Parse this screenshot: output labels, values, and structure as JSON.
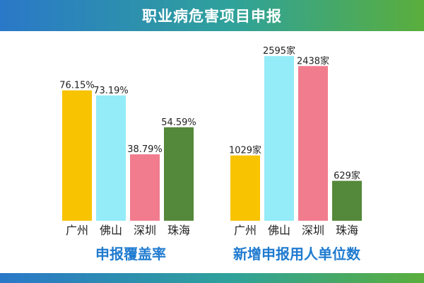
{
  "header": {
    "title": "职业病危害项目申报"
  },
  "colors": {
    "guangzhou": "#f8c300",
    "foshan": "#94ecf8",
    "shenzhen": "#f17c8e",
    "zhuhai": "#54883a",
    "caption": "#1f7bd0"
  },
  "chart_data": [
    {
      "type": "bar",
      "categories": [
        "广州",
        "佛山",
        "深圳",
        "珠海"
      ],
      "values": [
        76.15,
        73.19,
        38.79,
        54.59
      ],
      "labels": [
        "76.15%",
        "73.19%",
        "38.79%",
        "54.59%"
      ],
      "title": "申报覆盖率",
      "ylim": [
        0,
        100
      ],
      "grid": false,
      "legend": "none"
    },
    {
      "type": "bar",
      "categories": [
        "广州",
        "佛山",
        "深圳",
        "珠海"
      ],
      "values": [
        1029,
        2595,
        2438,
        629
      ],
      "labels": [
        "1029家",
        "2595家",
        "2438家",
        "629家"
      ],
      "title": "新增申报用人单位数",
      "ylim": [
        0,
        2800
      ],
      "grid": false,
      "legend": "none"
    }
  ]
}
